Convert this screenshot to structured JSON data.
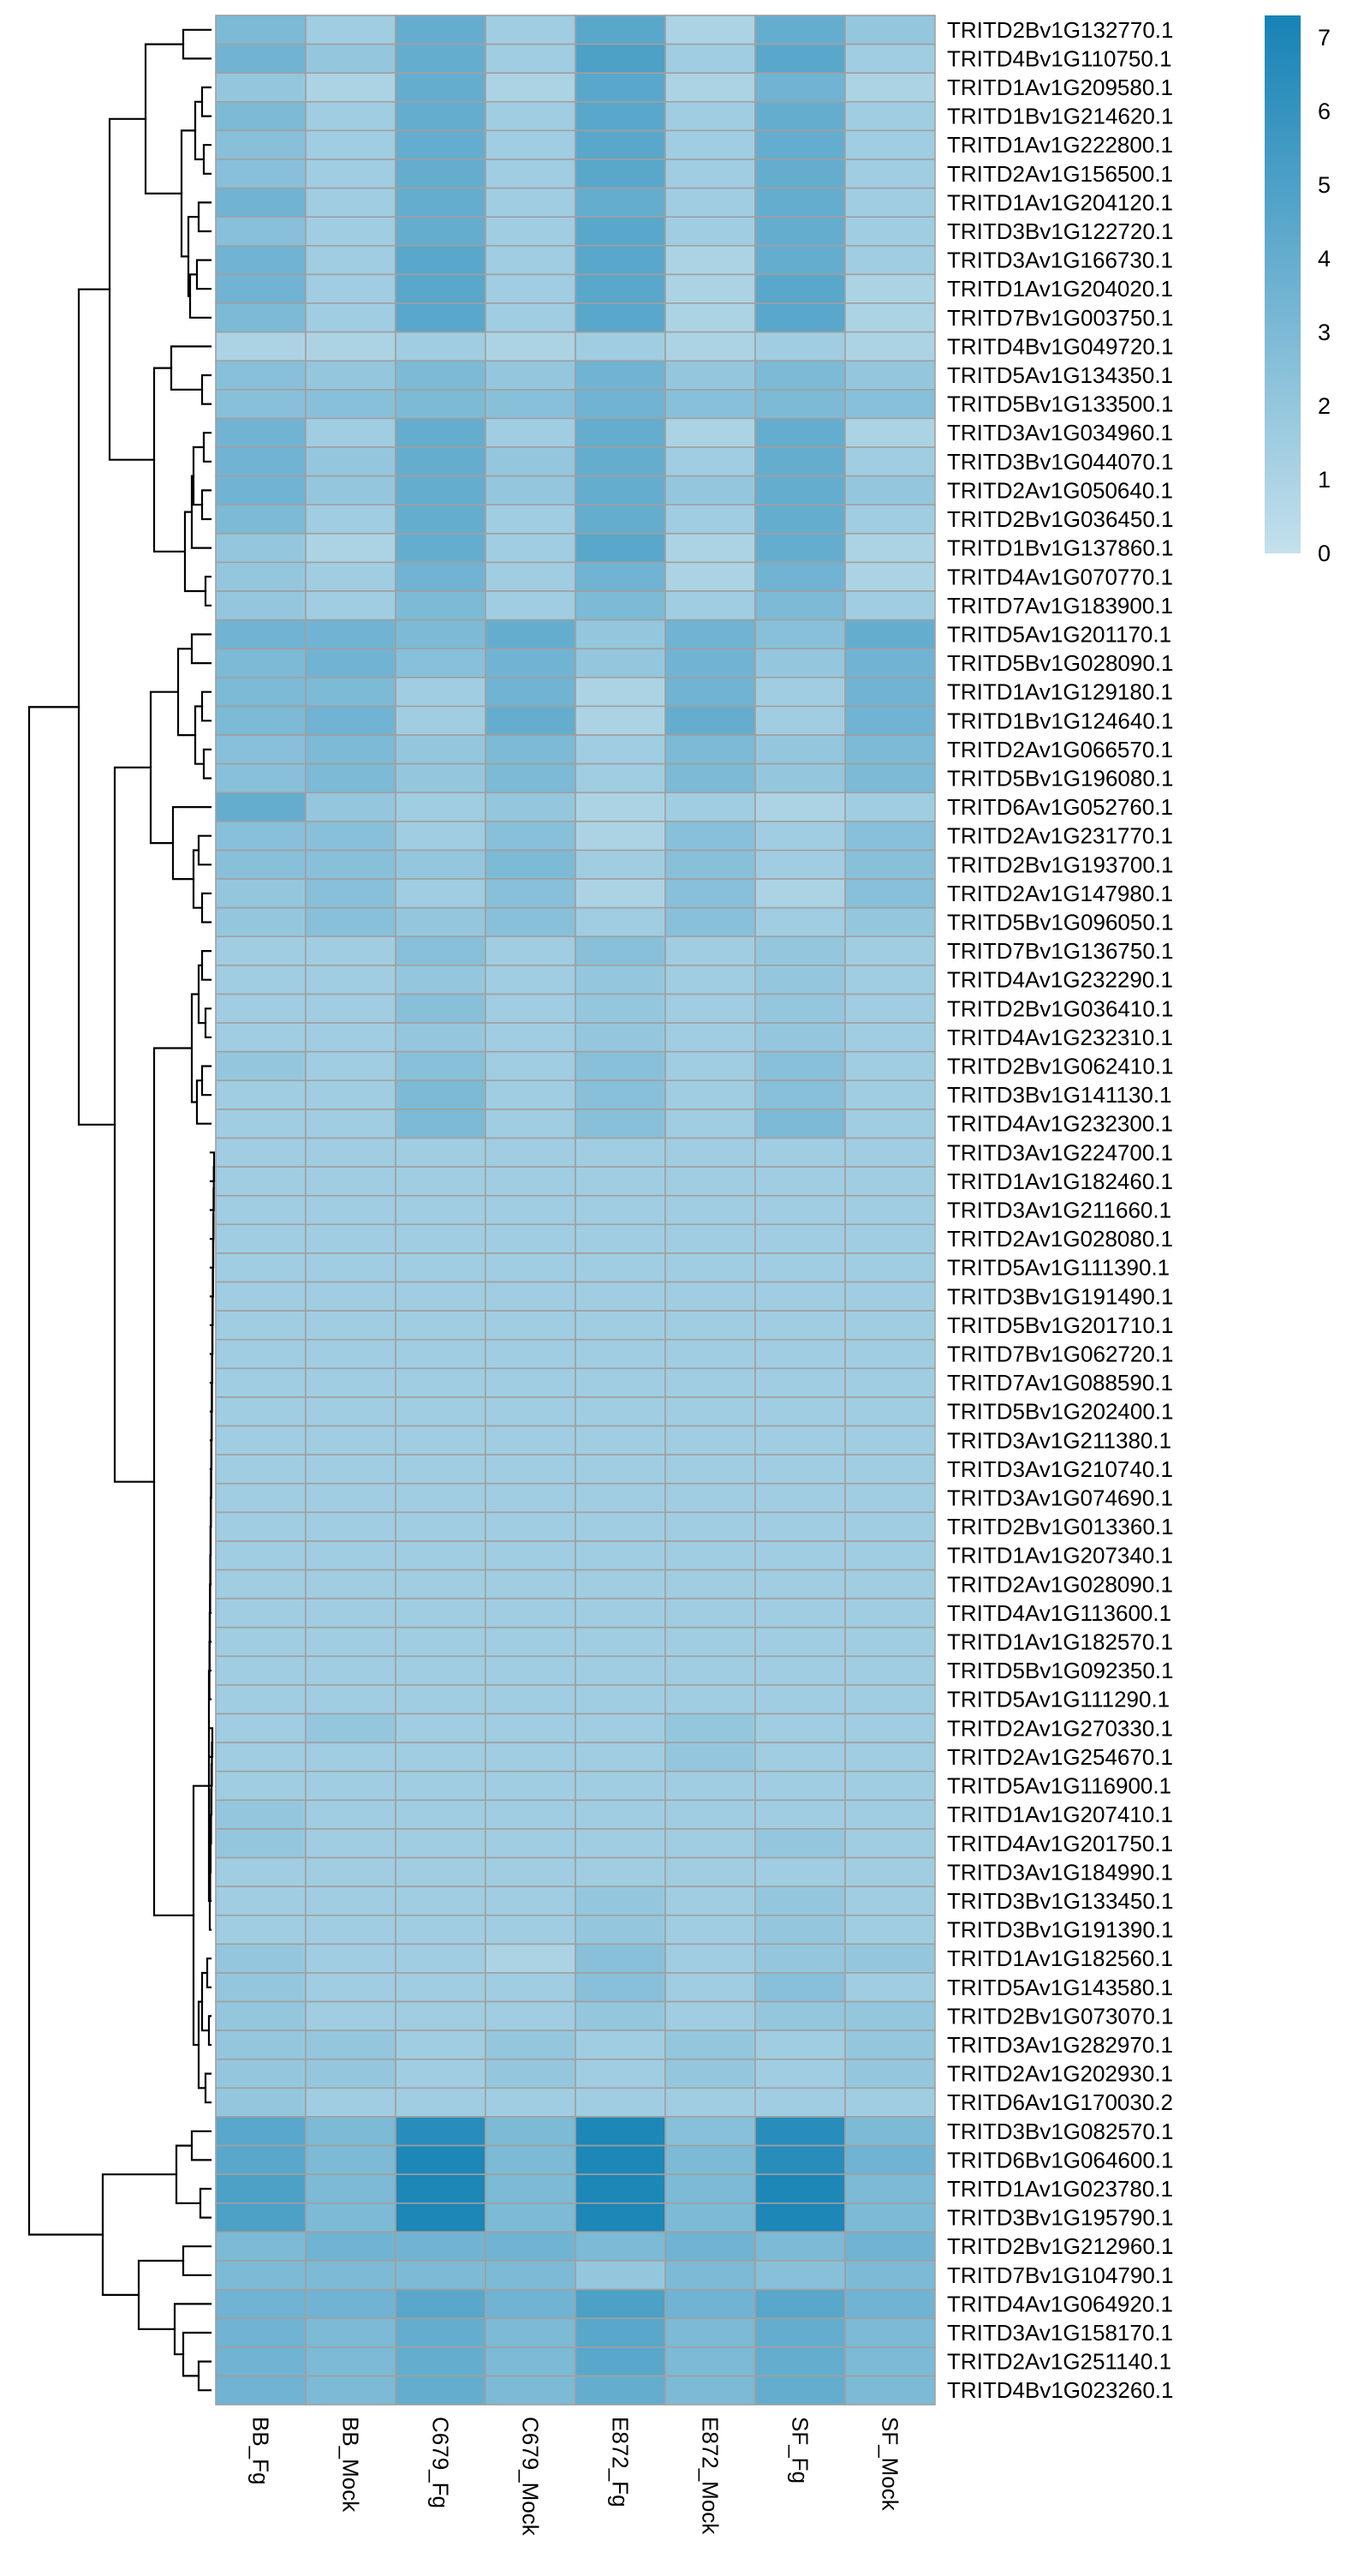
{
  "chart_data": {
    "type": "heatmap",
    "title": "",
    "xlabel": "",
    "ylabel": "",
    "columns": [
      "BB_Fg",
      "BB_Mock",
      "C679_Fg",
      "C679_Mock",
      "E872_Fg",
      "E872_Mock",
      "SF_Fg",
      "SF_Mock"
    ],
    "rows": [
      "TRITD2Bv1G132770.1",
      "TRITD4Bv1G110750.1",
      "TRITD1Av1G209580.1",
      "TRITD1Bv1G214620.1",
      "TRITD1Av1G222800.1",
      "TRITD2Av1G156500.1",
      "TRITD1Av1G204120.1",
      "TRITD3Bv1G122720.1",
      "TRITD3Av1G166730.1",
      "TRITD1Av1G204020.1",
      "TRITD7Bv1G003750.1",
      "TRITD4Bv1G049720.1",
      "TRITD5Av1G134350.1",
      "TRITD5Bv1G133500.1",
      "TRITD3Av1G034960.1",
      "TRITD3Bv1G044070.1",
      "TRITD2Av1G050640.1",
      "TRITD2Bv1G036450.1",
      "TRITD1Bv1G137860.1",
      "TRITD4Av1G070770.1",
      "TRITD7Av1G183900.1",
      "TRITD5Av1G201170.1",
      "TRITD5Bv1G028090.1",
      "TRITD1Av1G129180.1",
      "TRITD1Bv1G124640.1",
      "TRITD2Av1G066570.1",
      "TRITD5Bv1G196080.1",
      "TRITD6Av1G052760.1",
      "TRITD2Av1G231770.1",
      "TRITD2Bv1G193700.1",
      "TRITD2Av1G147980.1",
      "TRITD5Bv1G096050.1",
      "TRITD7Bv1G136750.1",
      "TRITD4Av1G232290.1",
      "TRITD2Bv1G036410.1",
      "TRITD4Av1G232310.1",
      "TRITD2Bv1G062410.1",
      "TRITD3Bv1G141130.1",
      "TRITD4Av1G232300.1",
      "TRITD3Av1G224700.1",
      "TRITD1Av1G182460.1",
      "TRITD3Av1G211660.1",
      "TRITD2Av1G028080.1",
      "TRITD5Av1G111390.1",
      "TRITD3Bv1G191490.1",
      "TRITD5Bv1G201710.1",
      "TRITD7Bv1G062720.1",
      "TRITD7Av1G088590.1",
      "TRITD5Bv1G202400.1",
      "TRITD3Av1G211380.1",
      "TRITD3Av1G210740.1",
      "TRITD3Av1G074690.1",
      "TRITD2Bv1G013360.1",
      "TRITD1Av1G207340.1",
      "TRITD2Av1G028090.1",
      "TRITD4Av1G113600.1",
      "TRITD1Av1G182570.1",
      "TRITD5Bv1G092350.1",
      "TRITD5Av1G111290.1",
      "TRITD2Av1G270330.1",
      "TRITD2Av1G254670.1",
      "TRITD5Av1G116900.1",
      "TRITD1Av1G207410.1",
      "TRITD4Av1G201750.1",
      "TRITD3Av1G184990.1",
      "TRITD3Bv1G133450.1",
      "TRITD3Bv1G191390.1",
      "TRITD1Av1G182560.1",
      "TRITD5Av1G143580.1",
      "TRITD2Bv1G073070.1",
      "TRITD3Av1G282970.1",
      "TRITD2Av1G202930.1",
      "TRITD6Av1G170030.2",
      "TRITD3Bv1G082570.1",
      "TRITD6Bv1G064600.1",
      "TRITD1Av1G023780.1",
      "TRITD3Bv1G195790.1",
      "TRITD2Bv1G212960.1",
      "TRITD7Bv1G104790.1",
      "TRITD4Av1G064920.1",
      "TRITD3Av1G158170.1",
      "TRITD2Av1G251140.1",
      "TRITD4Bv1G023260.1"
    ],
    "values": [
      [
        3.0,
        1.5,
        4.0,
        1.5,
        4.5,
        1.0,
        4.0,
        2.0
      ],
      [
        3.5,
        2.0,
        4.0,
        1.5,
        5.0,
        1.5,
        4.5,
        1.5
      ],
      [
        2.0,
        1.0,
        4.0,
        1.0,
        4.5,
        1.0,
        3.5,
        1.0
      ],
      [
        3.0,
        1.5,
        4.0,
        1.5,
        4.5,
        1.5,
        4.0,
        1.5
      ],
      [
        2.5,
        1.5,
        4.0,
        1.5,
        4.5,
        1.5,
        4.0,
        1.5
      ],
      [
        2.5,
        1.5,
        4.0,
        1.5,
        4.5,
        1.5,
        4.0,
        1.5
      ],
      [
        3.5,
        1.5,
        4.0,
        1.5,
        4.0,
        1.5,
        4.0,
        1.5
      ],
      [
        2.5,
        1.5,
        4.0,
        1.5,
        4.5,
        1.5,
        4.0,
        1.5
      ],
      [
        3.5,
        1.5,
        4.5,
        1.5,
        4.5,
        1.0,
        4.0,
        1.5
      ],
      [
        3.5,
        1.5,
        4.5,
        1.5,
        4.5,
        1.0,
        4.5,
        1.0
      ],
      [
        3.0,
        1.5,
        4.5,
        1.5,
        4.5,
        1.0,
        4.5,
        1.0
      ],
      [
        1.0,
        1.0,
        1.5,
        1.0,
        1.5,
        1.0,
        1.5,
        1.0
      ],
      [
        2.5,
        2.0,
        3.0,
        2.0,
        3.5,
        2.0,
        3.0,
        2.0
      ],
      [
        2.5,
        2.5,
        3.0,
        2.5,
        3.5,
        2.5,
        3.0,
        2.5
      ],
      [
        3.5,
        1.5,
        4.0,
        1.5,
        4.0,
        1.0,
        4.0,
        1.0
      ],
      [
        3.5,
        2.0,
        4.0,
        2.0,
        4.0,
        1.5,
        4.0,
        1.5
      ],
      [
        3.5,
        2.0,
        4.0,
        2.0,
        4.0,
        2.0,
        4.0,
        2.0
      ],
      [
        3.0,
        1.5,
        4.0,
        1.5,
        4.0,
        1.5,
        4.0,
        1.5
      ],
      [
        2.0,
        1.0,
        4.0,
        1.5,
        4.5,
        1.0,
        4.0,
        1.0
      ],
      [
        2.0,
        1.5,
        3.5,
        1.5,
        3.5,
        1.0,
        3.5,
        1.0
      ],
      [
        2.0,
        1.5,
        3.0,
        1.5,
        3.0,
        1.5,
        3.0,
        1.5
      ],
      [
        3.5,
        3.5,
        3.0,
        4.0,
        2.0,
        3.5,
        2.5,
        4.0
      ],
      [
        3.0,
        3.5,
        2.5,
        3.5,
        2.0,
        3.5,
        2.0,
        3.5
      ],
      [
        3.0,
        3.0,
        1.5,
        3.5,
        1.0,
        3.5,
        1.5,
        3.5
      ],
      [
        3.0,
        3.5,
        1.5,
        4.0,
        1.0,
        4.0,
        1.5,
        3.5
      ],
      [
        2.5,
        3.0,
        2.0,
        3.0,
        1.5,
        3.0,
        2.0,
        3.0
      ],
      [
        2.5,
        3.0,
        2.0,
        3.0,
        1.5,
        3.0,
        2.0,
        3.0
      ],
      [
        4.0,
        2.0,
        1.5,
        2.0,
        1.0,
        1.5,
        1.0,
        1.5
      ],
      [
        2.5,
        2.5,
        1.5,
        2.5,
        1.0,
        2.5,
        1.5,
        2.5
      ],
      [
        2.5,
        2.5,
        2.0,
        3.0,
        1.5,
        2.5,
        1.5,
        2.5
      ],
      [
        2.0,
        2.5,
        1.5,
        2.5,
        1.0,
        2.5,
        1.0,
        2.5
      ],
      [
        2.0,
        2.5,
        2.0,
        2.5,
        1.5,
        2.5,
        1.5,
        2.0
      ],
      [
        1.5,
        1.5,
        2.5,
        1.5,
        2.5,
        1.5,
        2.0,
        1.5
      ],
      [
        1.5,
        1.5,
        2.0,
        1.5,
        2.0,
        1.5,
        2.0,
        1.5
      ],
      [
        1.5,
        1.5,
        2.5,
        1.5,
        2.0,
        1.5,
        2.0,
        1.5
      ],
      [
        1.5,
        1.5,
        2.0,
        1.5,
        2.0,
        1.5,
        2.0,
        1.5
      ],
      [
        2.0,
        1.5,
        2.5,
        1.5,
        2.5,
        1.5,
        2.5,
        1.5
      ],
      [
        1.5,
        1.5,
        3.0,
        1.5,
        2.5,
        1.5,
        2.5,
        1.5
      ],
      [
        1.5,
        1.5,
        3.0,
        1.5,
        2.5,
        1.5,
        3.0,
        1.5
      ],
      [
        1.5,
        1.5,
        1.5,
        1.5,
        1.5,
        1.5,
        1.5,
        1.5
      ],
      [
        1.5,
        1.5,
        1.5,
        1.5,
        1.5,
        1.5,
        1.5,
        1.5
      ],
      [
        1.5,
        1.5,
        1.5,
        1.5,
        1.5,
        1.5,
        1.5,
        1.5
      ],
      [
        1.5,
        1.5,
        1.5,
        1.5,
        1.5,
        1.5,
        1.5,
        1.5
      ],
      [
        1.5,
        1.5,
        1.5,
        1.5,
        1.5,
        1.5,
        1.5,
        1.5
      ],
      [
        1.5,
        1.5,
        1.5,
        1.5,
        1.5,
        1.5,
        1.5,
        1.5
      ],
      [
        1.5,
        1.5,
        1.5,
        1.5,
        1.5,
        1.5,
        1.5,
        1.5
      ],
      [
        1.5,
        1.5,
        1.5,
        1.5,
        1.5,
        1.5,
        1.5,
        1.5
      ],
      [
        1.5,
        1.5,
        1.5,
        1.5,
        1.5,
        1.5,
        1.5,
        1.5
      ],
      [
        1.5,
        1.5,
        1.5,
        1.5,
        1.5,
        1.5,
        1.5,
        1.5
      ],
      [
        1.5,
        1.5,
        1.5,
        1.5,
        1.5,
        1.5,
        1.5,
        1.5
      ],
      [
        1.5,
        1.5,
        1.5,
        1.5,
        1.5,
        1.5,
        1.5,
        1.5
      ],
      [
        1.5,
        1.5,
        1.5,
        1.5,
        1.5,
        1.5,
        1.5,
        1.5
      ],
      [
        1.5,
        1.5,
        1.5,
        1.5,
        1.5,
        1.5,
        1.5,
        1.5
      ],
      [
        1.5,
        1.5,
        1.5,
        1.5,
        1.5,
        1.5,
        1.5,
        1.5
      ],
      [
        1.5,
        1.5,
        1.5,
        1.5,
        1.5,
        1.5,
        1.5,
        1.5
      ],
      [
        1.5,
        1.5,
        1.5,
        1.5,
        1.5,
        1.5,
        1.5,
        1.5
      ],
      [
        1.5,
        1.5,
        1.5,
        1.5,
        1.5,
        1.5,
        1.5,
        1.5
      ],
      [
        1.5,
        1.5,
        1.5,
        1.5,
        1.5,
        1.5,
        1.5,
        1.5
      ],
      [
        1.5,
        1.5,
        1.5,
        1.5,
        1.5,
        1.5,
        1.5,
        1.5
      ],
      [
        1.5,
        2.0,
        1.5,
        1.5,
        1.5,
        2.0,
        1.5,
        1.5
      ],
      [
        1.5,
        1.5,
        1.5,
        1.5,
        1.5,
        2.0,
        1.5,
        1.5
      ],
      [
        1.5,
        1.5,
        1.5,
        1.5,
        1.5,
        1.5,
        1.5,
        1.5
      ],
      [
        2.0,
        1.5,
        1.5,
        1.5,
        1.5,
        1.5,
        1.5,
        1.5
      ],
      [
        2.0,
        1.5,
        1.5,
        1.5,
        1.5,
        1.5,
        2.0,
        1.5
      ],
      [
        1.5,
        1.5,
        1.5,
        1.5,
        1.5,
        1.5,
        1.5,
        1.5
      ],
      [
        1.5,
        1.5,
        1.5,
        1.5,
        2.0,
        1.5,
        2.0,
        1.5
      ],
      [
        1.5,
        1.5,
        1.5,
        1.5,
        2.0,
        1.5,
        2.0,
        1.5
      ],
      [
        2.0,
        1.5,
        1.5,
        1.0,
        2.5,
        1.5,
        2.0,
        2.0
      ],
      [
        2.0,
        1.5,
        1.5,
        1.5,
        2.5,
        1.5,
        2.5,
        1.5
      ],
      [
        2.0,
        1.5,
        1.5,
        1.5,
        2.0,
        1.5,
        2.0,
        2.0
      ],
      [
        2.0,
        2.0,
        1.5,
        2.0,
        1.5,
        2.0,
        1.5,
        2.0
      ],
      [
        2.0,
        2.0,
        1.5,
        2.0,
        1.5,
        2.0,
        1.5,
        2.0
      ],
      [
        2.0,
        1.5,
        1.5,
        1.5,
        1.5,
        1.5,
        1.5,
        1.5
      ],
      [
        4.5,
        3.0,
        6.5,
        3.0,
        7.0,
        2.5,
        6.5,
        3.0
      ],
      [
        4.5,
        3.0,
        7.0,
        3.0,
        7.0,
        3.0,
        6.5,
        3.5
      ],
      [
        5.0,
        3.0,
        7.0,
        3.0,
        7.0,
        3.0,
        7.0,
        3.0
      ],
      [
        5.0,
        3.0,
        7.0,
        3.0,
        7.0,
        3.0,
        7.0,
        3.0
      ],
      [
        3.0,
        3.5,
        3.5,
        3.5,
        3.0,
        3.5,
        3.0,
        3.5
      ],
      [
        3.0,
        3.0,
        3.0,
        3.0,
        2.0,
        3.0,
        2.5,
        3.0
      ],
      [
        3.5,
        3.5,
        4.5,
        3.5,
        5.0,
        3.5,
        4.5,
        3.5
      ],
      [
        3.5,
        3.0,
        4.0,
        3.0,
        4.5,
        3.0,
        4.0,
        3.0
      ],
      [
        3.5,
        3.0,
        4.0,
        3.0,
        4.5,
        3.0,
        4.0,
        3.0
      ],
      [
        3.5,
        3.0,
        4.0,
        3.0,
        4.0,
        3.0,
        4.0,
        3.0
      ]
    ],
    "colorscale": {
      "min_color": "#c4e0ec",
      "max_color": "#1683b5",
      "range": [
        0,
        7.3
      ],
      "ticks": [
        0,
        1,
        2,
        3,
        4,
        5,
        6,
        7
      ]
    },
    "grid": true,
    "cell_border_color": "#a0a0a0",
    "row_dendrogram": true,
    "column_dendrogram": false
  }
}
